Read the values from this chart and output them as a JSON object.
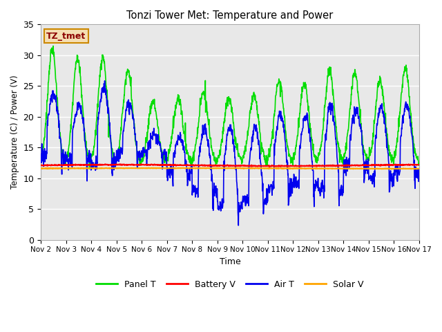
{
  "title": "Tonzi Tower Met: Temperature and Power",
  "xlabel": "Time",
  "ylabel": "Temperature (C) / Power (V)",
  "ylim": [
    0,
    35
  ],
  "annotation_text": "TZ_tmet",
  "annotation_bg": "#F5DEB3",
  "annotation_text_color": "#8B0000",
  "annotation_edge_color": "#CC8800",
  "legend_labels": [
    "Panel T",
    "Battery V",
    "Air T",
    "Solar V"
  ],
  "legend_colors": [
    "#00DD00",
    "#FF0000",
    "#0000EE",
    "#FFA500"
  ],
  "panel_color": "#00DD00",
  "battery_color": "#FF0000",
  "air_color": "#0000EE",
  "solar_color": "#FFA500",
  "plot_bg": "#E8E8E8",
  "fig_bg": "#FFFFFF",
  "grid_color": "#FFFFFF",
  "xtick_labels": [
    "Nov 2",
    "Nov 3",
    "Nov 4",
    "Nov 5",
    "Nov 6",
    "Nov 7",
    "Nov 8",
    "Nov 9",
    "Nov 10",
    "Nov 11",
    "Nov 12",
    "Nov 13",
    "Nov 14",
    "Nov 15",
    "Nov 16",
    "Nov 17"
  ],
  "ytick_values": [
    0,
    5,
    10,
    15,
    20,
    25,
    30,
    35
  ],
  "days": 15,
  "battery_base": 12.1,
  "solar_base": 11.6
}
